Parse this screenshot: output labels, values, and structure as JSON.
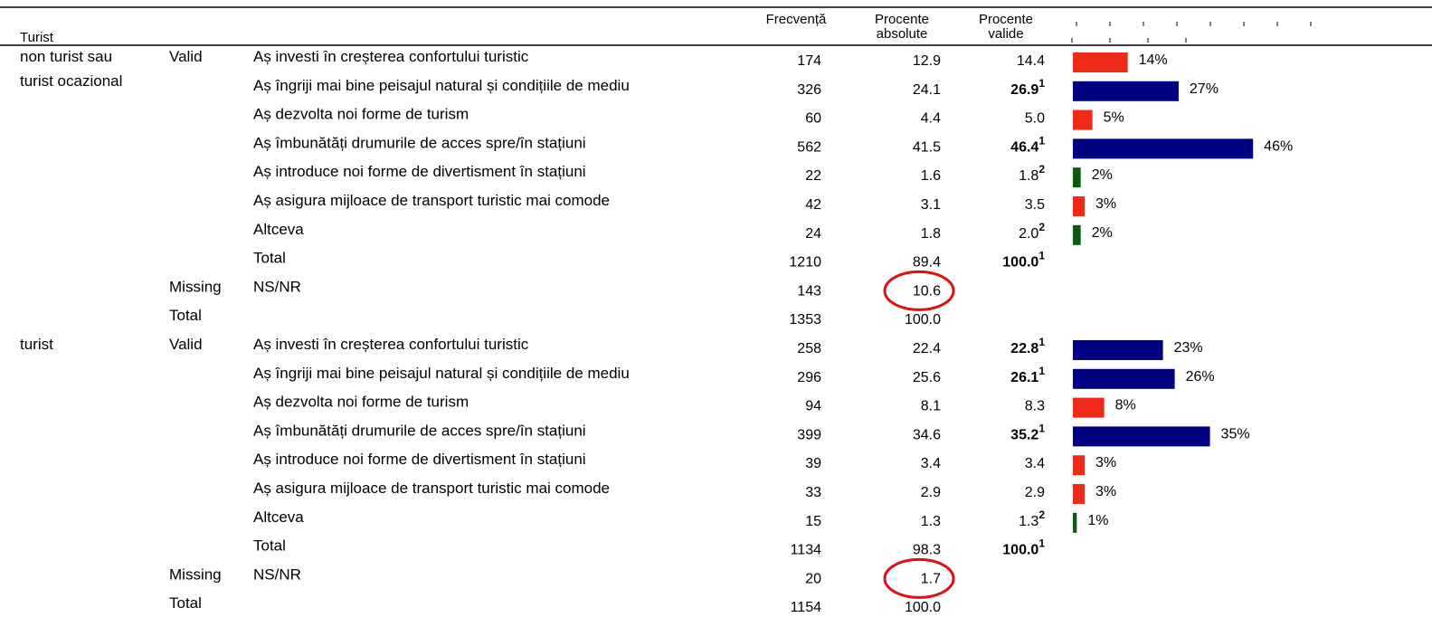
{
  "header": {
    "first": "Turist",
    "freq": "Frecvență",
    "abs": [
      "Procente",
      "absolute"
    ],
    "valid": [
      "Procente",
      "valide"
    ]
  },
  "groups": [
    {
      "label": [
        "non turist sau",
        "turist ocazional"
      ],
      "rows": [
        {
          "status": "Valid",
          "item": "Aș investi în creșterea confortului turistic",
          "freq": 174,
          "abs": "12.9",
          "valid": "14.4",
          "bar": {
            "value": 14,
            "label": "14%",
            "color": "#ee2a18"
          }
        },
        {
          "item": "Aș îngriji mai bine peisajul natural și condițiile de mediu",
          "freq": 326,
          "abs": "24.1",
          "valid": "26.9",
          "bold": true,
          "sup": "1",
          "bar": {
            "value": 27,
            "label": "27%",
            "color": "#000080"
          }
        },
        {
          "item": "Aș dezvolta noi forme de turism",
          "freq": 60,
          "abs": "4.4",
          "valid": "5.0",
          "bar": {
            "value": 5,
            "label": "5%",
            "color": "#ee2a18"
          }
        },
        {
          "item": "Aș îmbunătăți drumurile de acces spre/în stațiuni",
          "freq": 562,
          "abs": "41.5",
          "valid": "46.4",
          "bold": true,
          "sup": "1",
          "bar": {
            "value": 46,
            "label": "46%",
            "color": "#000080"
          }
        },
        {
          "item": "Aș introduce noi forme de divertisment în stațiuni",
          "freq": 22,
          "abs": "1.6",
          "valid": "1.8",
          "sup": "2",
          "bar": {
            "value": 2,
            "label": "2%",
            "color": "#0a5a10"
          }
        },
        {
          "item": "Aș asigura mijloace de transport turistic mai comode",
          "freq": 42,
          "abs": "3.1",
          "valid": "3.5",
          "bar": {
            "value": 3,
            "label": "3%",
            "color": "#ee2a18"
          }
        },
        {
          "item": "Altceva",
          "freq": 24,
          "abs": "1.8",
          "valid": "2.0",
          "sup": "2",
          "bar": {
            "value": 2,
            "label": "2%",
            "color": "#0a5a10"
          }
        },
        {
          "item": "Total",
          "freq": 1210,
          "abs": "89.4",
          "valid": "100.0",
          "bold": true,
          "sup": "1"
        },
        {
          "status": "Missing",
          "item": "NS/NR",
          "freq": 143,
          "abs": "10.6",
          "circled": true
        },
        {
          "status": "Total",
          "freq": 1353,
          "abs": "100.0"
        }
      ]
    },
    {
      "label": [
        "turist"
      ],
      "rows": [
        {
          "status": "Valid",
          "item": "Aș investi în creșterea confortului turistic",
          "freq": 258,
          "abs": "22.4",
          "valid": "22.8",
          "bold": true,
          "sup": "1",
          "bar": {
            "value": 23,
            "label": "23%",
            "color": "#000080"
          }
        },
        {
          "item": "Aș îngriji mai bine peisajul natural și condițiile de mediu",
          "freq": 296,
          "abs": "25.6",
          "valid": "26.1",
          "bold": true,
          "sup": "1",
          "bar": {
            "value": 26,
            "label": "26%",
            "color": "#000080"
          }
        },
        {
          "item": "Aș dezvolta noi forme de turism",
          "freq": 94,
          "abs": "8.1",
          "valid": "8.3",
          "bar": {
            "value": 8,
            "label": "8%",
            "color": "#ee2a18"
          }
        },
        {
          "item": "Aș îmbunătăți drumurile de acces spre/în stațiuni",
          "freq": 399,
          "abs": "34.6",
          "valid": "35.2",
          "bold": true,
          "sup": "1",
          "bar": {
            "value": 35,
            "label": "35%",
            "color": "#000080"
          }
        },
        {
          "item": "Aș introduce noi forme de divertisment în stațiuni",
          "freq": 39,
          "abs": "3.4",
          "valid": "3.4",
          "bar": {
            "value": 3,
            "label": "3%",
            "color": "#ee2a18"
          }
        },
        {
          "item": "Aș asigura mijloace de transport turistic mai comode",
          "freq": 33,
          "abs": "2.9",
          "valid": "2.9",
          "bar": {
            "value": 3,
            "label": "3%",
            "color": "#ee2a18"
          }
        },
        {
          "item": "Altceva",
          "freq": 15,
          "abs": "1.3",
          "valid": "1.3",
          "sup": "2",
          "bar": {
            "value": 1,
            "label": "1%",
            "color": "#0a5a10"
          }
        },
        {
          "item": "Total",
          "freq": 1134,
          "abs": "98.3",
          "valid": "100.0",
          "bold": true,
          "sup": "1"
        },
        {
          "status": "Missing",
          "item": "NS/NR",
          "freq": 20,
          "abs": "1.7",
          "circled": true
        },
        {
          "status": "Total",
          "freq": 1154,
          "abs": "100.0"
        }
      ]
    }
  ]
}
